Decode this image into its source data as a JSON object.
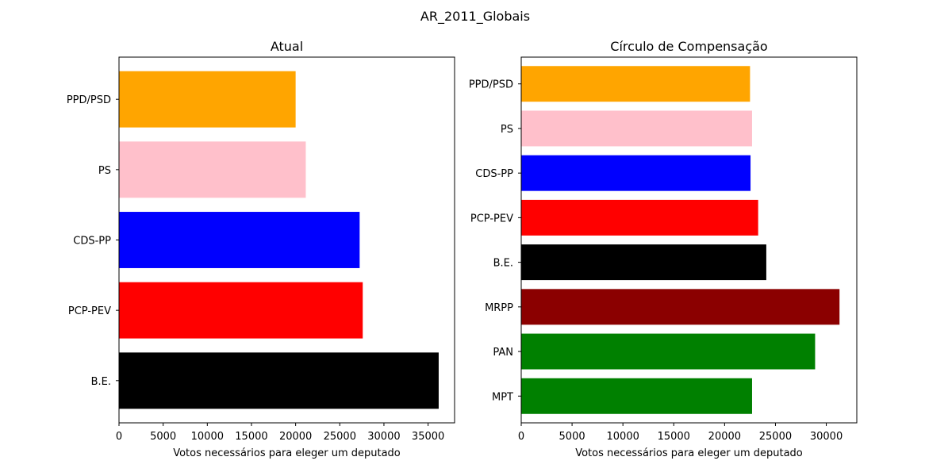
{
  "suptitle": "AR_2011_Globais",
  "chart_data": [
    {
      "type": "bar",
      "orientation": "horizontal",
      "title": "Atual",
      "xlabel": "Votos necessários para eleger um deputado",
      "ylabel": "",
      "xlim": [
        0,
        38000
      ],
      "xticks": [
        0,
        5000,
        10000,
        15000,
        20000,
        25000,
        30000,
        35000
      ],
      "grid": false,
      "categories": [
        "PPD/PSD",
        "PS",
        "CDS-PP",
        "PCP-PEV",
        "B.E."
      ],
      "values": [
        20000,
        21150,
        27250,
        27600,
        36200
      ],
      "colors": [
        "#FFA500",
        "#FFC0CB",
        "#0000FF",
        "#FF0000",
        "#000000"
      ]
    },
    {
      "type": "bar",
      "orientation": "horizontal",
      "title": "Círculo de Compensação",
      "xlabel": "Votos necessários para eleger um deputado",
      "ylabel": "",
      "xlim": [
        0,
        33000
      ],
      "xticks": [
        0,
        5000,
        10000,
        15000,
        20000,
        25000,
        30000
      ],
      "grid": false,
      "categories": [
        "PPD/PSD",
        "PS",
        "CDS-PP",
        "PCP-PEV",
        "B.E.",
        "MRPP",
        "PAN",
        "MPT"
      ],
      "values": [
        22500,
        22700,
        22550,
        23300,
        24100,
        31300,
        28900,
        22700
      ],
      "colors": [
        "#FFA500",
        "#FFC0CB",
        "#0000FF",
        "#FF0000",
        "#000000",
        "#8B0000",
        "#008000",
        "#008000"
      ]
    }
  ]
}
